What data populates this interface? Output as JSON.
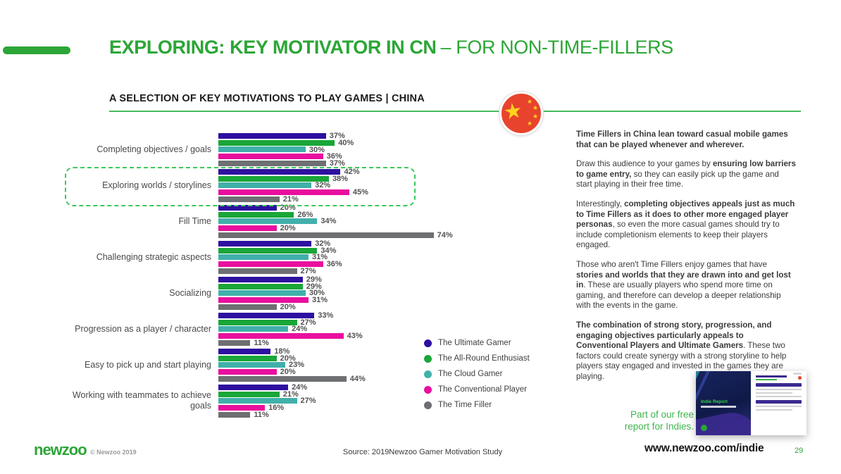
{
  "slide": {
    "title_bold": "EXPLORING: KEY MOTIVATOR IN CN",
    "title_light": "– FOR NON-TIME-FILLERS",
    "subtitle": "A SELECTION OF KEY MOTIVATIONS TO PLAY GAMES | CHINA"
  },
  "colors": {
    "accent_green": "#2ba636",
    "divider_green": "#45bb5e",
    "highlight_dash_green": "#3ec85b",
    "flag_red": "#e8432d",
    "flag_star_yellow": "#ffd21e"
  },
  "chart_data": {
    "type": "bar",
    "orientation": "horizontal",
    "title": "A SELECTION OF KEY MOTIVATIONS TO PLAY GAMES | CHINA",
    "value_suffix": "%",
    "xlim": [
      0,
      80
    ],
    "grid": false,
    "legend_position": "right-bottom",
    "highlighted_category": "Exploring worlds / storylines",
    "categories": [
      "Completing objectives / goals",
      "Exploring worlds / storylines",
      "Fill Time",
      "Challenging strategic aspects",
      "Socializing",
      "Progression as a player / character",
      "Easy to pick up and start playing",
      "Working with teammates to achieve goals"
    ],
    "series": [
      {
        "name": "The Ultimate Gamer",
        "color": "#2e10a0",
        "values": [
          37,
          42,
          20,
          32,
          29,
          33,
          18,
          24
        ]
      },
      {
        "name": "The All-Round Enthusiast",
        "color": "#1aa638",
        "values": [
          40,
          38,
          26,
          34,
          29,
          27,
          20,
          21
        ]
      },
      {
        "name": "The Cloud Gamer",
        "color": "#41b0aa",
        "values": [
          30,
          32,
          34,
          31,
          30,
          24,
          23,
          27
        ]
      },
      {
        "name": "The Conventional Player",
        "color": "#e90f9e",
        "values": [
          36,
          45,
          20,
          36,
          31,
          43,
          20,
          16
        ]
      },
      {
        "name": "The Time Filler",
        "color": "#6e6f72",
        "values": [
          37,
          21,
          74,
          27,
          20,
          11,
          44,
          11
        ]
      }
    ]
  },
  "insights": {
    "paragraphs": [
      [
        {
          "t": "Time Fillers in China lean toward casual mobile games that can be played whenever and wherever.",
          "b": true
        }
      ],
      [
        {
          "t": "Draw this audience to your games by ",
          "b": false
        },
        {
          "t": "ensuring low barriers to game entry,",
          "b": true
        },
        {
          "t": " so they can easily pick up the game and start playing in their free time.",
          "b": false
        }
      ],
      [
        {
          "t": "Interestingly, ",
          "b": false
        },
        {
          "t": "completing objectives appeals just as much to Time Fillers as it does to other more engaged player personas",
          "b": true
        },
        {
          "t": ", so even the more casual games should try to include completionism elements to keep their players engaged.",
          "b": false
        }
      ],
      [
        {
          "t": "Those who aren't Time Fillers enjoy games that have ",
          "b": false
        },
        {
          "t": "stories and worlds that they are drawn into and get lost in",
          "b": true
        },
        {
          "t": ". These are usually players who spend more time on gaming, and therefore can develop a deeper relationship with the events in the game.",
          "b": false
        }
      ],
      [
        {
          "t": "The combination of strong story, progression, and engaging objectives particularly appeals to Conventional Players and Ultimate Gamers",
          "b": true
        },
        {
          "t": ". These two factors could create synergy with a strong storyline to help players stay engaged and invested in the games they are playing.",
          "b": false
        }
      ]
    ]
  },
  "promo": {
    "text": "Part of our free report for Indies.",
    "thumbnail_title": "Indie Report"
  },
  "footer": {
    "logo": "newzoo",
    "copyright": "© Newzoo 2019",
    "source": "Source: 2019Newzoo Gamer Motivation Study",
    "url": "www.newzoo.com/indie",
    "page": "29"
  }
}
